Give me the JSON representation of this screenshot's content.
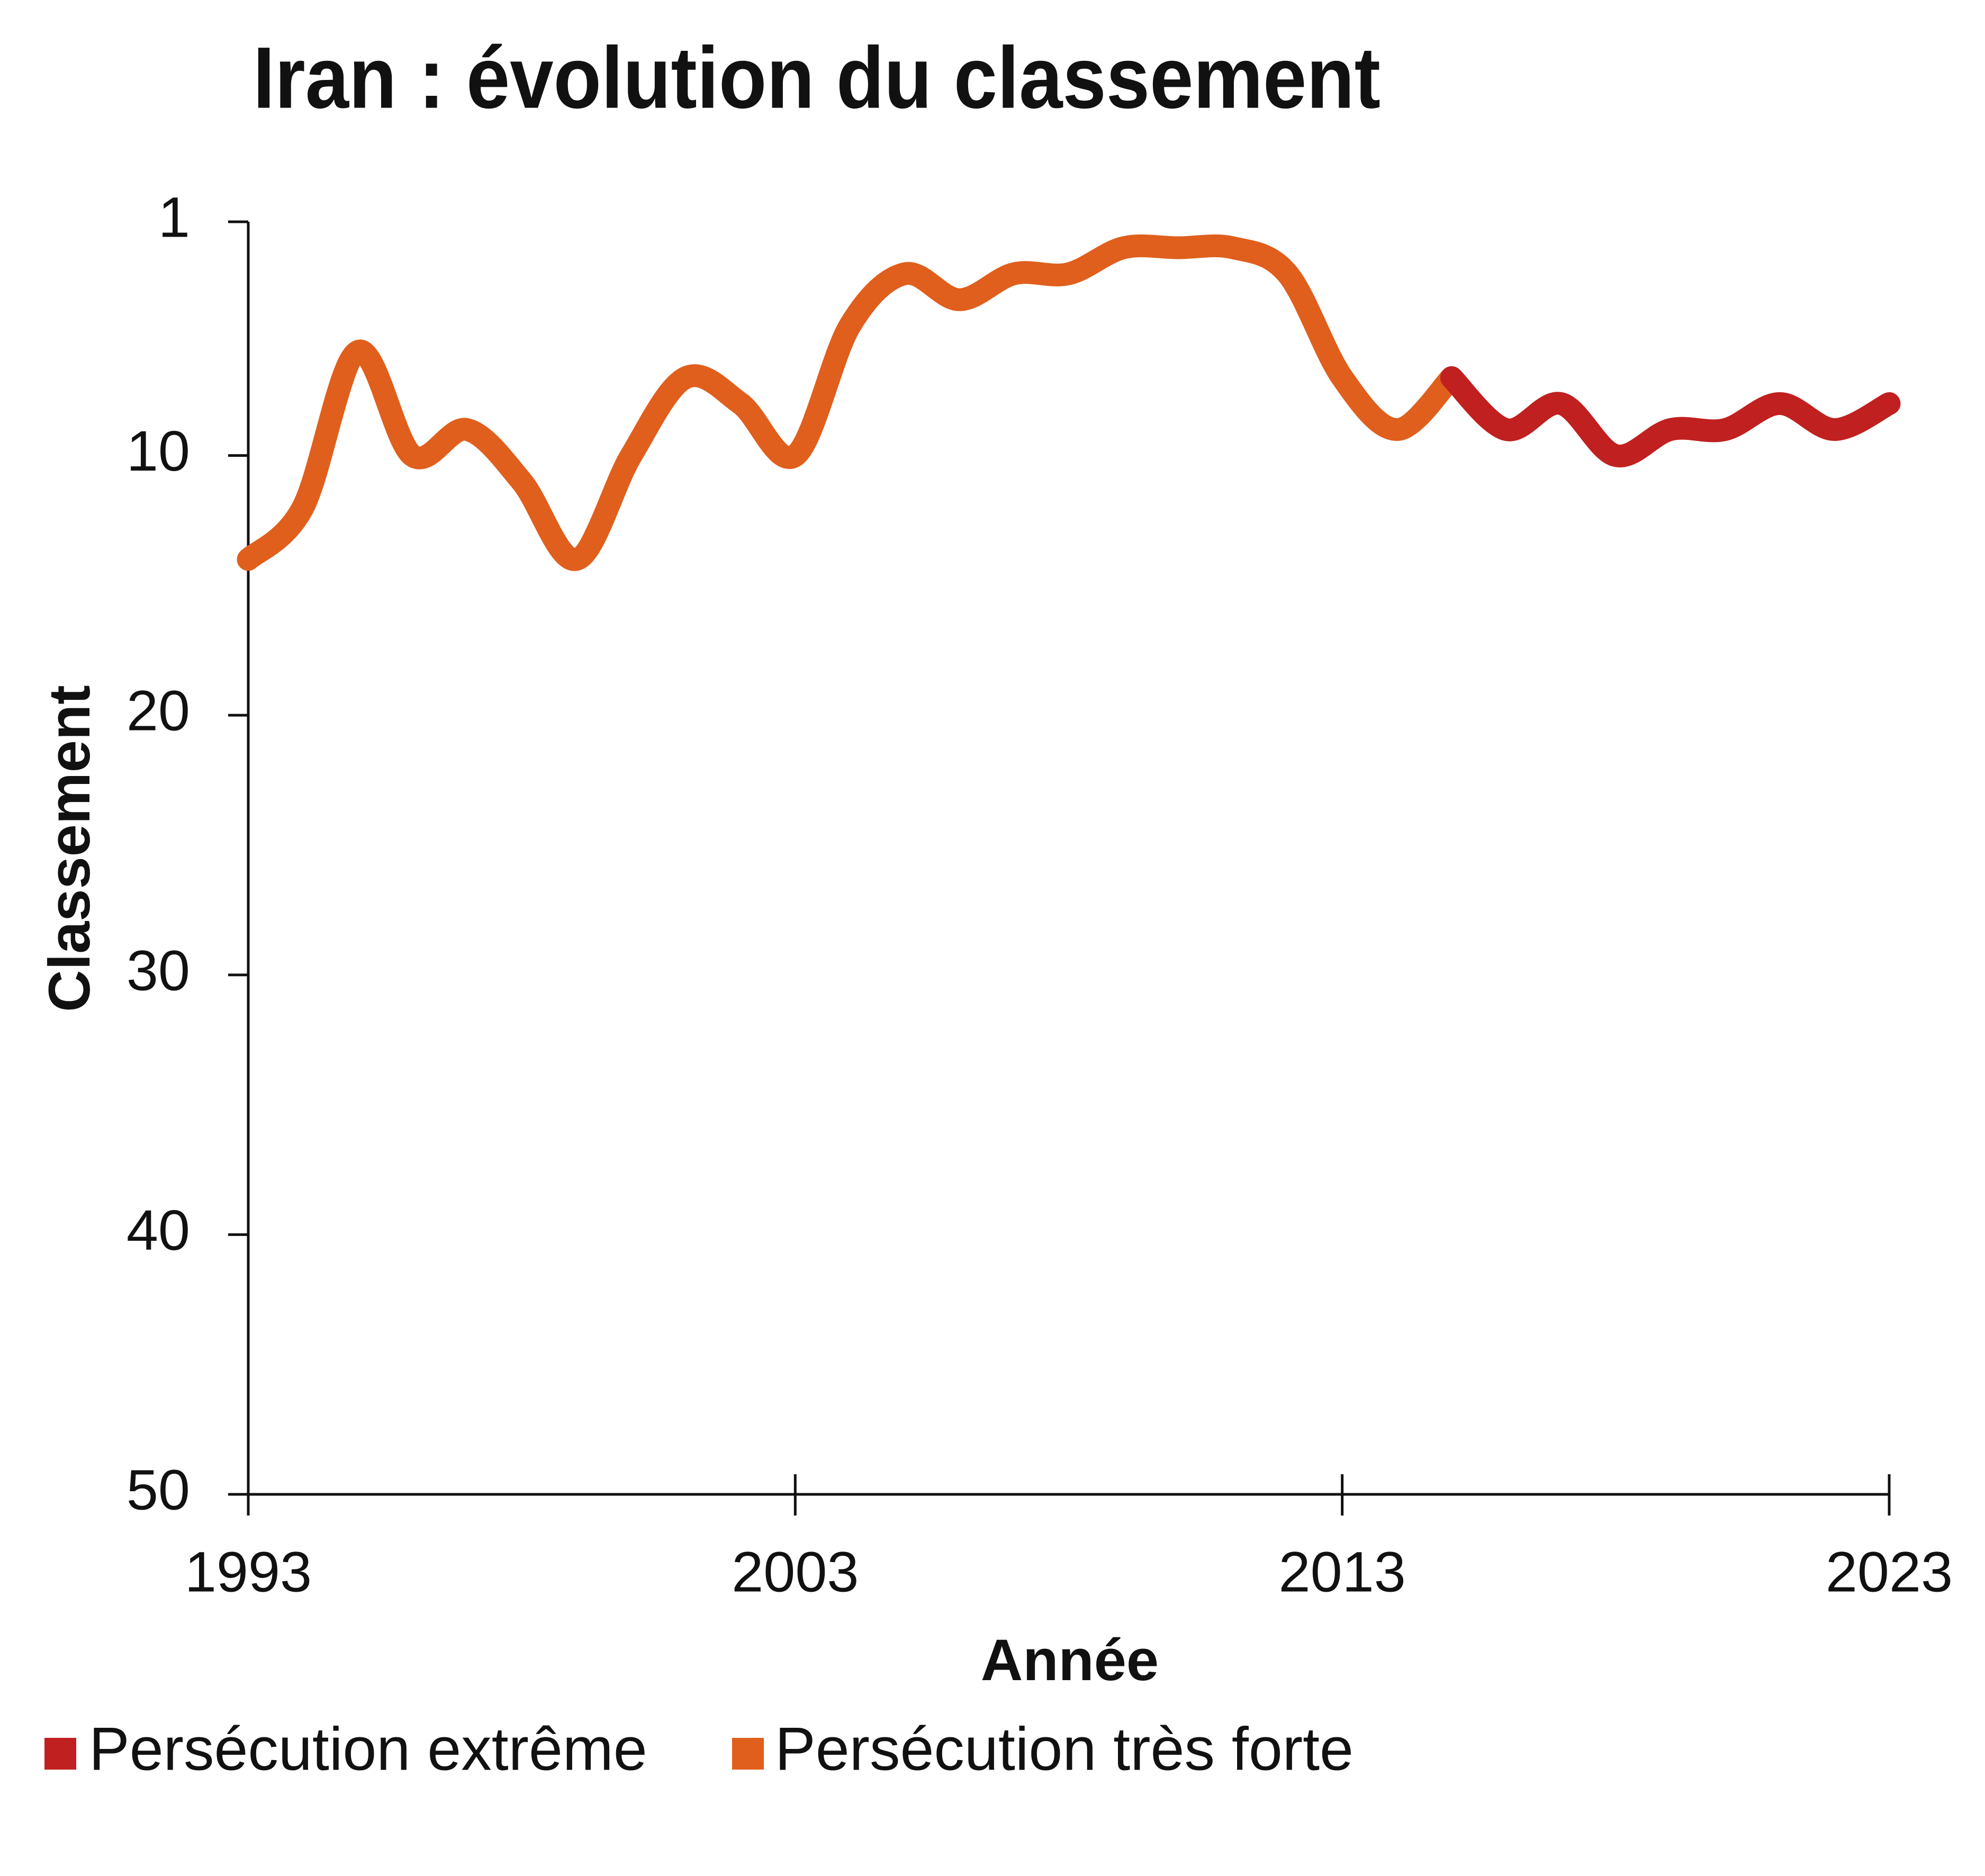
{
  "chart_data": {
    "type": "line",
    "title": "Iran : évolution du classement",
    "x_label": "Année",
    "y_label": "Classement",
    "x": [
      1993,
      1994,
      1995,
      1996,
      1997,
      1998,
      1999,
      2000,
      2001,
      2002,
      2003,
      2004,
      2005,
      2006,
      2007,
      2008,
      2009,
      2010,
      2011,
      2012,
      2013,
      2014,
      2015,
      2016,
      2017,
      2018,
      2019,
      2020,
      2021,
      2022,
      2023
    ],
    "series": [
      {
        "name": "Persécution extrême",
        "color": "#c0201f",
        "values": [
          null,
          null,
          null,
          null,
          null,
          null,
          null,
          null,
          null,
          null,
          null,
          null,
          null,
          null,
          null,
          null,
          null,
          null,
          null,
          null,
          null,
          null,
          7,
          9,
          8,
          10,
          9,
          9,
          8,
          9,
          8
        ]
      },
      {
        "name": "Persécution très forte",
        "color": "#e05f1c",
        "values": [
          14,
          12,
          6,
          10,
          9,
          11,
          14,
          10,
          7,
          8,
          10,
          5,
          3,
          4,
          3,
          3,
          2,
          2,
          2,
          3,
          7,
          9,
          7,
          null,
          null,
          null,
          null,
          null,
          null,
          null,
          null
        ]
      }
    ],
    "xlim": [
      1993,
      2023
    ],
    "xticks": [
      1993,
      2003,
      2013,
      2023
    ],
    "ylim": [
      1,
      50
    ],
    "yticks": [
      1,
      10,
      20,
      30,
      40,
      50
    ],
    "y_inverted": true,
    "grid": false
  }
}
